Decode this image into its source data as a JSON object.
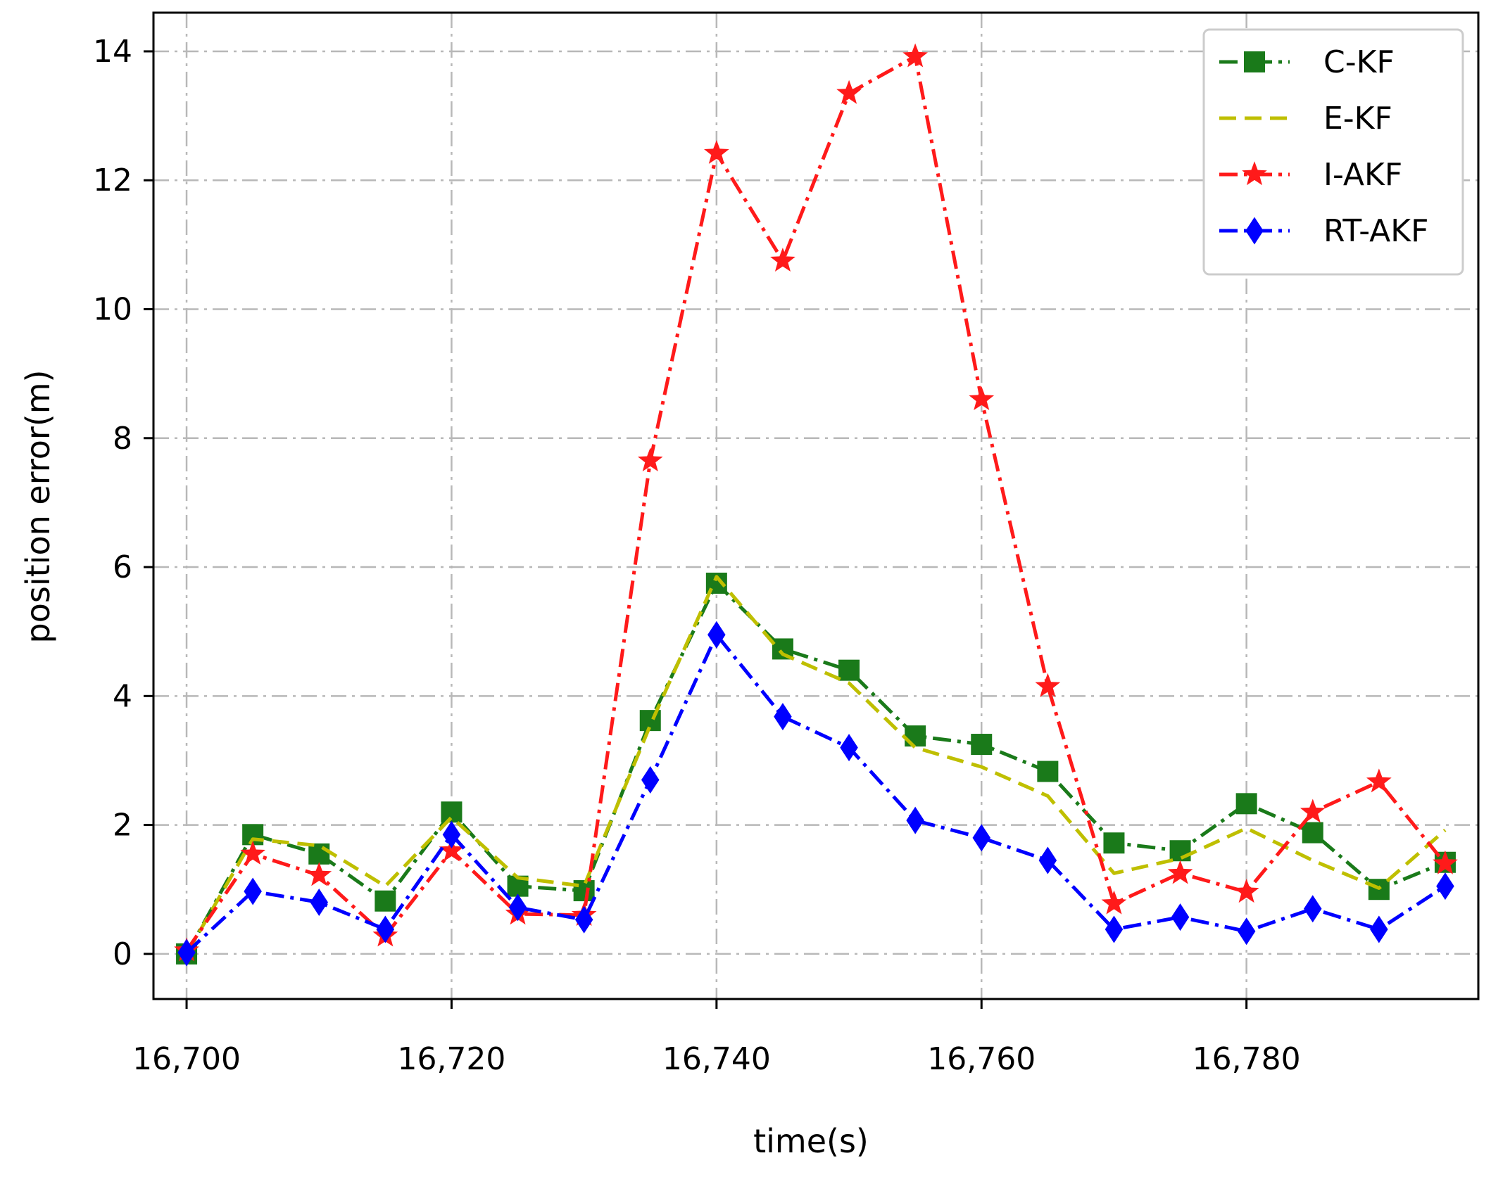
{
  "chart_data": {
    "type": "line",
    "title": "",
    "xlabel": "time(s)",
    "ylabel": "position error(m)",
    "xlim": [
      16697.5,
      16797.5
    ],
    "ylim": [
      -0.7,
      14.6
    ],
    "xticks": [
      16700,
      16720,
      16740,
      16760,
      16780
    ],
    "xtick_labels": [
      "16,700",
      "16,720",
      "16,740",
      "16,760",
      "16,780"
    ],
    "yticks": [
      0,
      2,
      4,
      6,
      8,
      10,
      12,
      14
    ],
    "ytick_labels": [
      "0",
      "2",
      "4",
      "6",
      "8",
      "10",
      "12",
      "14"
    ],
    "grid": true,
    "legend_position": "top-right",
    "x": [
      16700,
      16705,
      16710,
      16715,
      16720,
      16725,
      16730,
      16735,
      16740,
      16745,
      16750,
      16755,
      16760,
      16765,
      16770,
      16775,
      16780,
      16785,
      16790,
      16795
    ],
    "series": [
      {
        "name": "C-KF",
        "color": "#1a7a1a",
        "dash": "dashdot",
        "marker": "square",
        "values": [
          0.0,
          1.85,
          1.55,
          0.82,
          2.2,
          1.05,
          0.98,
          3.62,
          5.75,
          4.73,
          4.4,
          3.38,
          3.25,
          2.83,
          1.72,
          1.6,
          2.33,
          1.88,
          1.0,
          1.42
        ]
      },
      {
        "name": "E-KF",
        "color": "#bfbf00",
        "dash": "dashed",
        "marker": "none",
        "values": [
          0.0,
          1.78,
          1.68,
          1.05,
          2.12,
          1.18,
          1.05,
          3.55,
          5.85,
          4.65,
          4.2,
          3.2,
          2.9,
          2.45,
          1.25,
          1.48,
          1.95,
          1.45,
          1.02,
          1.92
        ]
      },
      {
        "name": "I-AKF",
        "color": "#ff1a1a",
        "dash": "dashdot",
        "marker": "star",
        "values": [
          0.05,
          1.55,
          1.22,
          0.28,
          1.6,
          0.62,
          0.6,
          7.65,
          12.42,
          10.75,
          13.35,
          13.92,
          8.6,
          4.15,
          0.78,
          1.25,
          0.96,
          2.2,
          2.67,
          1.4
        ]
      },
      {
        "name": "RT-AKF",
        "color": "#0000ff",
        "dash": "dashdot",
        "marker": "diamond",
        "values": [
          0.02,
          0.97,
          0.8,
          0.38,
          1.85,
          0.72,
          0.53,
          2.7,
          4.95,
          3.68,
          3.2,
          2.07,
          1.8,
          1.45,
          0.38,
          0.57,
          0.35,
          0.7,
          0.38,
          1.05
        ]
      }
    ]
  }
}
